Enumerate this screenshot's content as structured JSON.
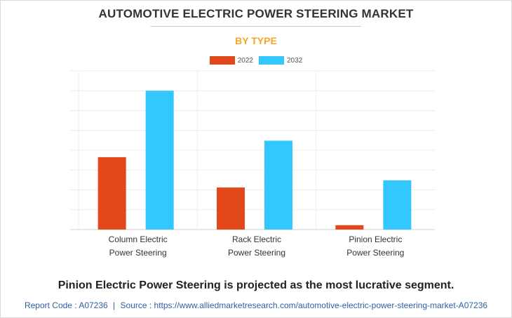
{
  "colors": {
    "series_2022": "#e2481a",
    "series_2032": "#33c8fd",
    "subtitle": "#f5a623",
    "footer": "#2f5fa8"
  },
  "header": {
    "title": "AUTOMOTIVE ELECTRIC POWER STEERING MARKET",
    "subtitle": "BY TYPE"
  },
  "legend": [
    {
      "label": "2022"
    },
    {
      "label": "2032"
    }
  ],
  "chart_data": {
    "type": "bar",
    "categories": [
      [
        "Column Electric",
        "Power Steering"
      ],
      [
        "Rack Electric",
        "Power Steering"
      ],
      [
        "Pinion Electric",
        "Power Steering"
      ]
    ],
    "series": [
      {
        "name": "2022",
        "values": [
          36.5,
          21.2,
          2.2
        ]
      },
      {
        "name": "2032",
        "values": [
          70,
          44.8,
          24.8
        ]
      }
    ],
    "ylim": [
      0,
      80
    ],
    "grid_step": 10,
    "grid": true,
    "title": "AUTOMOTIVE ELECTRIC POWER STEERING MARKET",
    "xlabel": "",
    "ylabel": ""
  },
  "headline": "Pinion Electric Power Steering is projected as the most lucrative segment.",
  "footer": {
    "report_code_label": "Report Code : A07236",
    "separator": "|",
    "source_label": "Source : https://www.alliedmarketresearch.com/automotive-electric-power-steering-market-A07236"
  }
}
